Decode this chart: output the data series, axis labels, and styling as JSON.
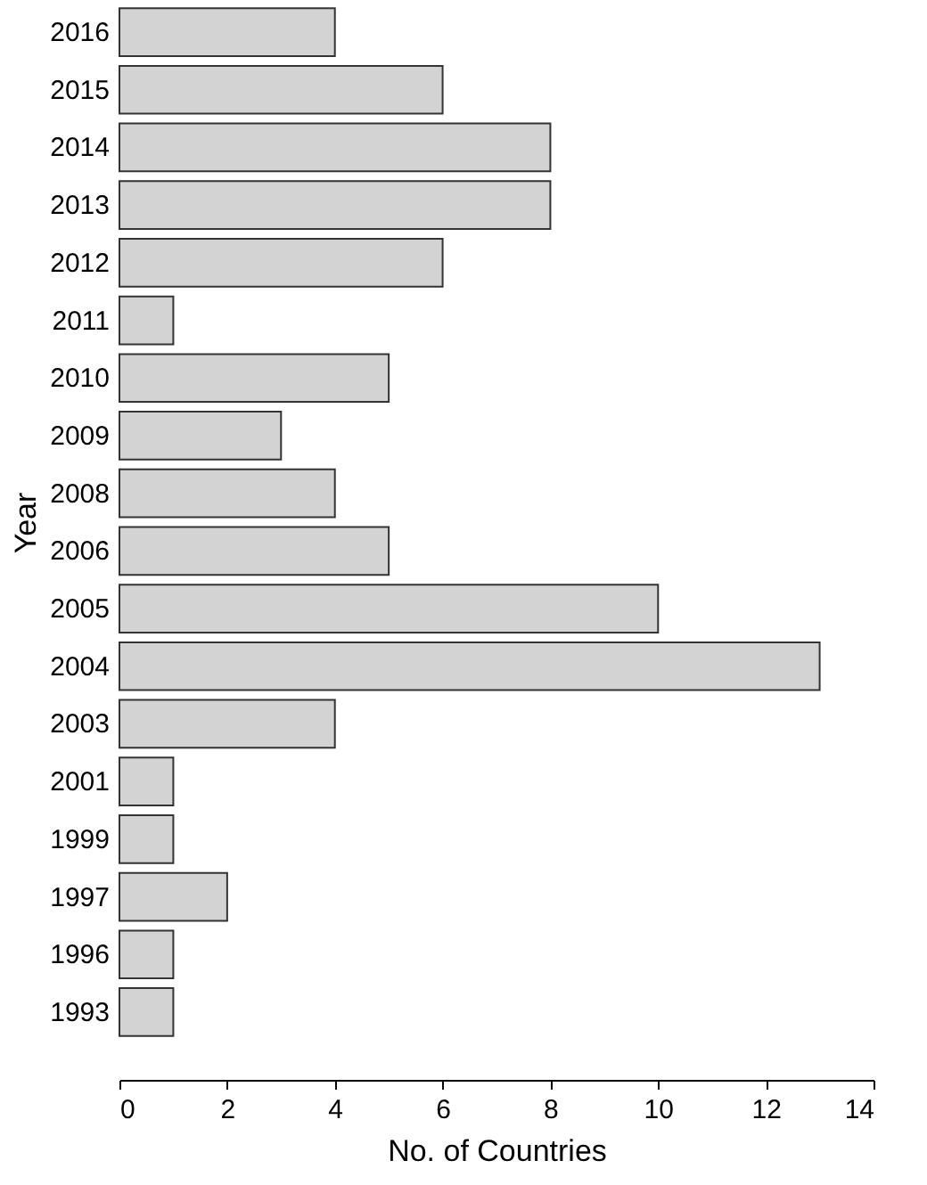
{
  "chart_data": {
    "type": "bar",
    "orientation": "horizontal",
    "xlabel": "No. of Countries",
    "ylabel": "Year",
    "categories": [
      "2016",
      "2015",
      "2014",
      "2013",
      "2012",
      "2011",
      "2010",
      "2009",
      "2008",
      "2006",
      "2005",
      "2004",
      "2003",
      "2001",
      "1999",
      "1997",
      "1996",
      "1993"
    ],
    "values": [
      4,
      6,
      8,
      8,
      6,
      1,
      5,
      3,
      4,
      5,
      10,
      13,
      4,
      1,
      1,
      2,
      1,
      1
    ],
    "color": "#d3d3d3",
    "xlim": [
      0,
      14
    ],
    "xticks": [
      0,
      2,
      4,
      6,
      8,
      10,
      12,
      14
    ],
    "grid": false
  }
}
